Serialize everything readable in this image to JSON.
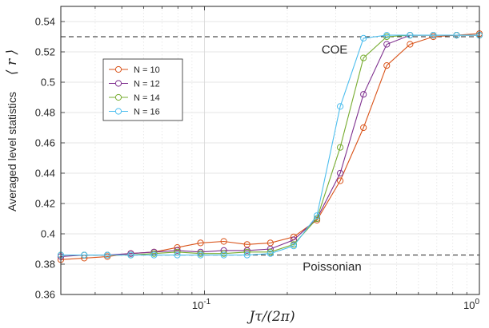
{
  "chart_data": {
    "type": "line",
    "xlabel": "Jτ/(2π)",
    "ylabel": "Averaged level statistics",
    "ylabel_symbol": "⟨ r ⟩",
    "xscale": "log",
    "xlim": [
      0.03,
      1
    ],
    "ylim": [
      0.36,
      0.55
    ],
    "yticks": [
      0.36,
      0.38,
      0.4,
      0.42,
      0.44,
      0.46,
      0.48,
      0.5,
      0.52,
      0.54
    ],
    "ytick_labels": [
      "0.36",
      "0.38",
      "0.4",
      "0.42",
      "0.44",
      "0.46",
      "0.48",
      "0.5",
      "0.52",
      "0.54"
    ],
    "xticks": [
      0.1,
      1
    ],
    "xtick_labels": [
      {
        "base": "10",
        "exp": "-1"
      },
      {
        "base": "10",
        "exp": "0"
      }
    ],
    "grid": true,
    "legend_position": "upper-left",
    "reference_lines": [
      {
        "y": 0.53,
        "label": "COE"
      },
      {
        "y": 0.386,
        "label": "Poissonian"
      }
    ],
    "x": [
      0.03,
      0.0365,
      0.0443,
      0.0539,
      0.0655,
      0.0796,
      0.0967,
      0.1175,
      0.1428,
      0.1736,
      0.211,
      0.2564,
      0.3116,
      0.3787,
      0.4602,
      0.5593,
      0.6798,
      0.8262,
      1.0
    ],
    "series": [
      {
        "name": "N = 10",
        "color": "#d95319",
        "values": [
          0.383,
          0.384,
          0.385,
          0.387,
          0.388,
          0.391,
          0.394,
          0.395,
          0.393,
          0.394,
          0.398,
          0.409,
          0.435,
          0.47,
          0.511,
          0.525,
          0.53,
          0.531,
          0.532
        ]
      },
      {
        "name": "N = 12",
        "color": "#7e2f8e",
        "values": [
          0.385,
          0.386,
          0.386,
          0.387,
          0.388,
          0.389,
          0.388,
          0.389,
          0.389,
          0.39,
          0.396,
          0.41,
          0.44,
          0.492,
          0.525,
          0.531,
          0.531,
          0.531,
          0.531
        ]
      },
      {
        "name": "N = 14",
        "color": "#77ac30",
        "values": [
          0.386,
          0.386,
          0.386,
          0.386,
          0.387,
          0.388,
          0.387,
          0.387,
          0.388,
          0.388,
          0.393,
          0.41,
          0.457,
          0.516,
          0.53,
          0.531,
          0.531,
          0.531,
          0.531
        ]
      },
      {
        "name": "N = 16",
        "color": "#4dbeee",
        "values": [
          0.386,
          0.386,
          0.386,
          0.386,
          0.386,
          0.386,
          0.386,
          0.386,
          0.386,
          0.387,
          0.392,
          0.412,
          0.484,
          0.529,
          0.531,
          0.531,
          0.531,
          0.531,
          0.531
        ]
      }
    ]
  }
}
